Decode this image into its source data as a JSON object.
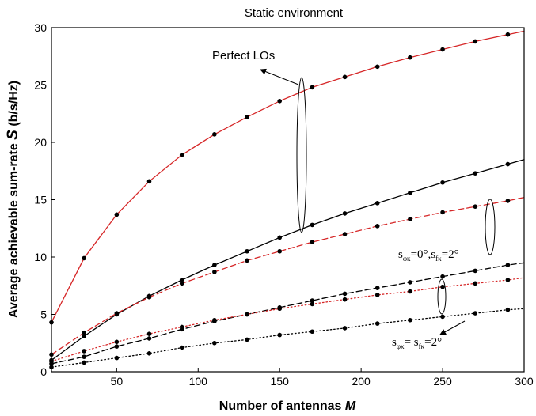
{
  "chart_data": {
    "type": "line",
    "title": "Static environment",
    "xlabel": "Number of antennas M",
    "xlabel_main": "Number of antennas ",
    "xlabel_var": "M",
    "ylabel": "Average achievable sum-rate S (b/s/Hz)",
    "ylabel_main": "Average achievable sum-rate ",
    "ylabel_var": "S",
    "ylabel_unit": " (b/s/Hz)",
    "xlim": [
      10,
      300
    ],
    "ylim": [
      0,
      30
    ],
    "x_ticks": [
      50,
      100,
      150,
      200,
      250,
      300
    ],
    "y_ticks": [
      0,
      5,
      10,
      15,
      20,
      25,
      30
    ],
    "grid": false,
    "annotations": {
      "perfect": "Perfect LOs",
      "sigma_a_main": "s",
      "sigma_a_sub": "φκ",
      "sigma_a_mid": "=0°,s",
      "sigma_a_sub2": "fκ",
      "sigma_a_end": "=2°",
      "sigma_b_main": "s",
      "sigma_b_sub": "φκ",
      "sigma_b_mid": "= s",
      "sigma_b_sub2": "fκ",
      "sigma_b_end": "=2°"
    },
    "series": [
      {
        "color": "#d62728",
        "style": "solid",
        "markers": true,
        "x": [
          10,
          30,
          50,
          70,
          90,
          110,
          130,
          150,
          170,
          190,
          210,
          230,
          250,
          270,
          290,
          300
        ],
        "values": [
          4.3,
          9.9,
          13.7,
          16.6,
          18.9,
          20.7,
          22.2,
          23.6,
          24.8,
          25.7,
          26.6,
          27.4,
          28.1,
          28.8,
          29.4,
          29.7
        ]
      },
      {
        "color": "#000000",
        "style": "solid",
        "markers": true,
        "x": [
          10,
          30,
          50,
          70,
          90,
          110,
          130,
          150,
          170,
          190,
          210,
          230,
          250,
          270,
          290,
          300
        ],
        "values": [
          1.0,
          3.1,
          5.0,
          6.6,
          8.0,
          9.3,
          10.5,
          11.7,
          12.8,
          13.8,
          14.7,
          15.6,
          16.5,
          17.3,
          18.1,
          18.5
        ]
      },
      {
        "color": "#d62728",
        "style": "dashed",
        "markers": true,
        "x": [
          10,
          30,
          50,
          70,
          90,
          110,
          130,
          150,
          170,
          190,
          210,
          230,
          250,
          270,
          290,
          300
        ],
        "values": [
          1.5,
          3.4,
          5.1,
          6.5,
          7.7,
          8.7,
          9.7,
          10.5,
          11.3,
          12.0,
          12.7,
          13.3,
          13.9,
          14.4,
          14.9,
          15.2
        ]
      },
      {
        "color": "#000000",
        "style": "dashed",
        "markers": true,
        "x": [
          10,
          30,
          50,
          70,
          90,
          110,
          130,
          150,
          170,
          190,
          210,
          230,
          250,
          270,
          290,
          300
        ],
        "values": [
          0.7,
          1.3,
          2.2,
          2.9,
          3.7,
          4.4,
          5.0,
          5.6,
          6.2,
          6.8,
          7.3,
          7.8,
          8.3,
          8.8,
          9.3,
          9.5
        ]
      },
      {
        "color": "#d62728",
        "style": "dotted",
        "markers": true,
        "x": [
          10,
          30,
          50,
          70,
          90,
          110,
          130,
          150,
          170,
          190,
          210,
          230,
          250,
          270,
          290,
          300
        ],
        "values": [
          0.9,
          1.8,
          2.6,
          3.3,
          3.9,
          4.5,
          5.0,
          5.5,
          5.9,
          6.3,
          6.7,
          7.0,
          7.4,
          7.7,
          8.0,
          8.2
        ]
      },
      {
        "color": "#000000",
        "style": "dotted",
        "markers": true,
        "x": [
          10,
          30,
          50,
          70,
          90,
          110,
          130,
          150,
          170,
          190,
          210,
          230,
          250,
          270,
          290,
          300
        ],
        "values": [
          0.4,
          0.8,
          1.2,
          1.6,
          2.1,
          2.5,
          2.8,
          3.2,
          3.5,
          3.8,
          4.2,
          4.5,
          4.8,
          5.1,
          5.4,
          5.5
        ]
      }
    ]
  }
}
